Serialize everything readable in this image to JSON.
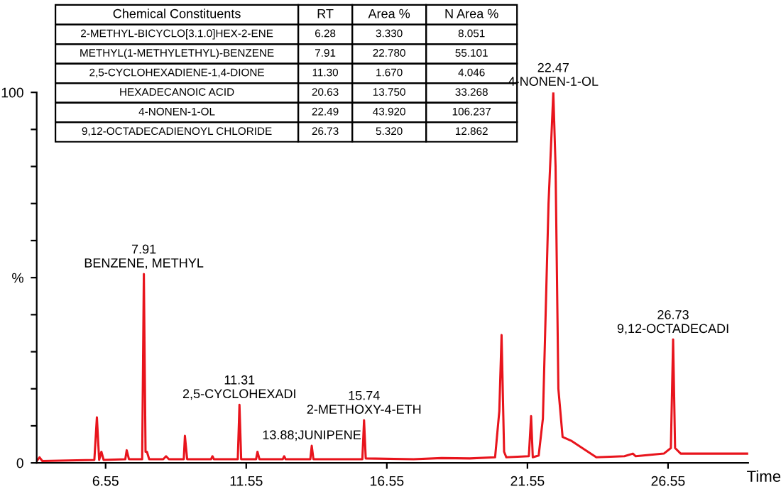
{
  "chart_data": {
    "type": "line",
    "xlabel": "Time",
    "x": [
      4.1,
      4.2,
      4.3,
      6.15,
      6.24,
      6.32,
      6.4,
      6.48,
      7.25,
      7.3,
      7.38,
      7.85,
      7.91,
      7.97,
      8.02,
      8.1,
      8.6,
      8.7,
      8.8,
      9.33,
      9.37,
      9.45,
      10.3,
      10.35,
      10.4,
      11.25,
      11.31,
      11.37,
      11.9,
      11.95,
      12.02,
      12.85,
      12.9,
      12.95,
      13.83,
      13.88,
      13.94,
      15.68,
      15.74,
      15.8,
      17.5,
      18.5,
      19.5,
      20.4,
      20.55,
      20.63,
      20.72,
      20.8,
      21.6,
      21.68,
      21.74,
      21.95,
      22.1,
      22.3,
      22.47,
      22.55,
      22.65,
      22.8,
      23.1,
      23.5,
      24,
      25,
      25.3,
      25.4,
      26.4,
      26.65,
      26.73,
      26.8,
      27,
      29.4
    ],
    "series": [
      {
        "color": "#e8141c",
        "values": [
          0.5,
          1.5,
          0.5,
          0.8,
          12.3,
          0.8,
          3,
          0.8,
          1,
          3.4,
          1,
          1,
          51,
          3,
          3,
          1,
          1,
          1.8,
          1,
          1,
          7.3,
          1,
          1,
          1.8,
          1,
          1,
          15.7,
          1,
          1,
          3,
          1,
          1,
          1.8,
          1,
          1,
          4.6,
          1,
          1,
          11.5,
          1.2,
          1,
          1.3,
          1.2,
          1.5,
          14,
          34.5,
          3,
          1.5,
          1.8,
          12.6,
          1.5,
          2,
          12,
          70,
          100,
          80,
          20,
          7,
          6,
          4,
          1.5,
          1.8,
          2.5,
          1.8,
          2.5,
          4,
          33.3,
          4,
          2.5,
          2.5
        ]
      }
    ],
    "xlim": [
      4.1,
      29.4
    ],
    "xticks": [
      6.55,
      11.55,
      16.55,
      21.55,
      26.55
    ],
    "ylim": [
      0,
      100
    ],
    "yticks": [
      0,
      {
        "value": 10,
        "label": null
      },
      {
        "value": 20,
        "label": null
      },
      {
        "value": 30,
        "label": null
      },
      {
        "value": 40,
        "label": null
      },
      {
        "value": 50,
        "label": "%"
      },
      {
        "value": 60,
        "label": null
      },
      {
        "value": 70,
        "label": null
      },
      {
        "value": 80,
        "label": null
      },
      {
        "value": 90,
        "label": null
      },
      100
    ],
    "grid": false,
    "annotations": [
      {
        "text": "7.91\nBENZENE, METHYL",
        "x": 7.91,
        "y": 51
      },
      {
        "text": "11.31\n2,5-CYCLOHEXADI",
        "x": 11.31,
        "y": 15.7
      },
      {
        "text": "13.88;JUNIPENE",
        "x": 13.88,
        "y": 4.6
      },
      {
        "text": "15.74\n2-METHOXY-4-ETH",
        "x": 15.74,
        "y": 11.5
      },
      {
        "text": "22.47\n4-NONEN-1-OL",
        "x": 22.47,
        "y": 100
      },
      {
        "text": "26.73\n9,12-OCTADECADI",
        "x": 26.73,
        "y": 33.3
      },
      "Chemical Constituents",
      "RT",
      "Area %",
      "N Area %",
      "2-METHYL-BICYCLO[3.1.0]HEX-2-ENE",
      "6.28",
      "3.330",
      "8.051",
      "METHYL(1-METHYLETHYL)-BENZENE",
      "7.91",
      "22.780",
      "55.101",
      "2,5-CYCLOHEXADIENE-1,4-DIONE",
      "11.30",
      "1.670",
      "4.046",
      "HEXADECANOIC ACID",
      "20.63",
      "13.750",
      "33.268",
      "4-NONEN-1-OL",
      "22.49",
      "43.920",
      "106.237",
      "9,12-OCTADECADIENOYL CHLORIDE",
      "26.73",
      "5.320",
      "12.862"
    ]
  }
}
